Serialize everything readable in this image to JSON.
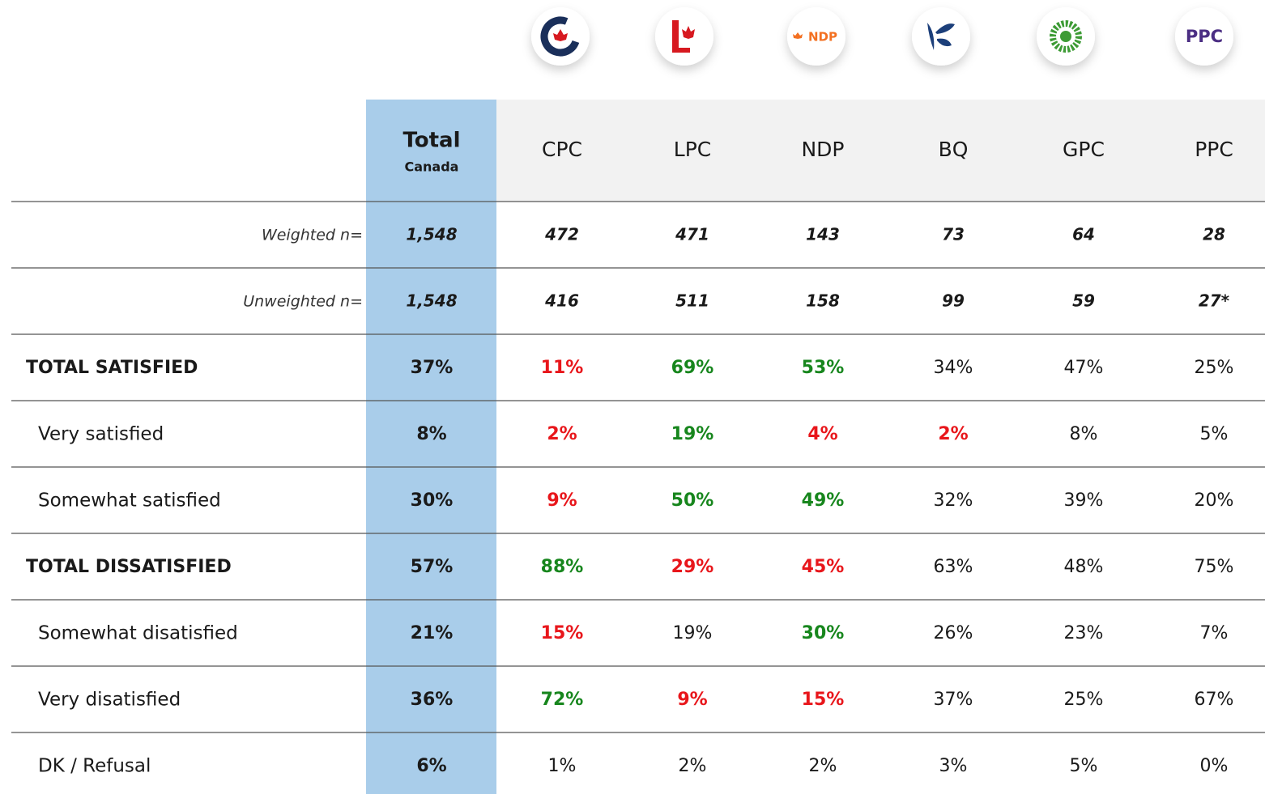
{
  "logos": {
    "ndp": "NDP",
    "ppc": "PPC"
  },
  "table": {
    "total_header": {
      "title": "Total",
      "subtitle": "Canada"
    },
    "columns": [
      "CPC",
      "LPC",
      "NDP",
      "BQ",
      "GPC",
      "PPC"
    ],
    "sample_rows": [
      {
        "label": "Weighted n=",
        "total": "1,548",
        "values": [
          "472",
          "471",
          "143",
          "73",
          "64",
          "28"
        ]
      },
      {
        "label": "Unweighted n=",
        "total": "1,548",
        "values": [
          "416",
          "511",
          "158",
          "99",
          "59",
          "27*"
        ]
      }
    ],
    "rows": [
      {
        "label": "TOTAL SATISFIED",
        "level": "total",
        "total": "37%",
        "values": [
          "11%",
          "69%",
          "53%",
          "34%",
          "47%",
          "25%"
        ],
        "tones": [
          "red",
          "green",
          "green",
          "plain",
          "plain",
          "plain"
        ]
      },
      {
        "label": "Very satisfied",
        "level": "sub",
        "total": "8%",
        "values": [
          "2%",
          "19%",
          "4%",
          "2%",
          "8%",
          "5%"
        ],
        "tones": [
          "red",
          "green",
          "red",
          "red",
          "plain",
          "plain"
        ]
      },
      {
        "label": "Somewhat satisfied",
        "level": "sub",
        "total": "30%",
        "values": [
          "9%",
          "50%",
          "49%",
          "32%",
          "39%",
          "20%"
        ],
        "tones": [
          "red",
          "green",
          "green",
          "plain",
          "plain",
          "plain"
        ]
      },
      {
        "label": "TOTAL DISSATISFIED",
        "level": "total",
        "total": "57%",
        "values": [
          "88%",
          "29%",
          "45%",
          "63%",
          "48%",
          "75%"
        ],
        "tones": [
          "green",
          "red",
          "red",
          "plain",
          "plain",
          "plain"
        ]
      },
      {
        "label": "Somewhat disatisfied",
        "level": "sub",
        "total": "21%",
        "values": [
          "15%",
          "19%",
          "30%",
          "26%",
          "23%",
          "7%"
        ],
        "tones": [
          "red",
          "plain",
          "green",
          "plain",
          "plain",
          "plain"
        ]
      },
      {
        "label": "Very disatisfied",
        "level": "sub",
        "total": "36%",
        "values": [
          "72%",
          "9%",
          "15%",
          "37%",
          "25%",
          "67%"
        ],
        "tones": [
          "green",
          "red",
          "red",
          "plain",
          "plain",
          "plain"
        ]
      },
      {
        "label": "DK / Refusal",
        "level": "sub",
        "total": "6%",
        "values": [
          "1%",
          "2%",
          "2%",
          "3%",
          "5%",
          "0%"
        ],
        "tones": [
          "plain",
          "plain",
          "plain",
          "plain",
          "plain",
          "plain"
        ]
      }
    ]
  }
}
